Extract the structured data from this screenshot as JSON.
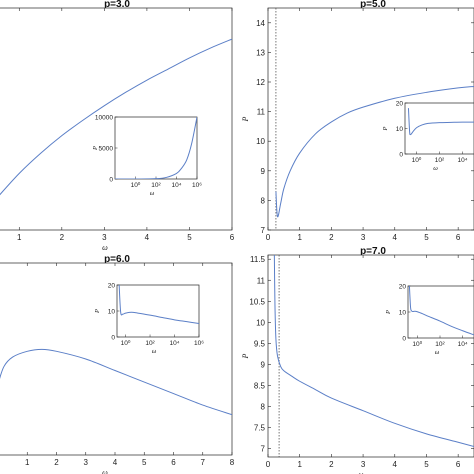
{
  "chart_data": [
    {
      "type": "line",
      "title": "p=3.0",
      "xlabel": "ω",
      "ylabel": "",
      "xlim": [
        0.5,
        6
      ],
      "ylim": [
        0,
        10
      ],
      "xticks": [
        "1",
        "2",
        "3",
        "4",
        "5",
        "6"
      ],
      "yticks": [],
      "series": [
        {
          "color": "#5b7fc7",
          "x": [
            0.5,
            1,
            1.5,
            2,
            2.5,
            3,
            3.5,
            4,
            4.5,
            5,
            5.5,
            6
          ],
          "y": [
            1.5,
            2.55,
            3.45,
            4.25,
            4.95,
            5.6,
            6.2,
            6.75,
            7.25,
            7.75,
            8.2,
            8.6
          ]
        }
      ],
      "inset": {
        "ylabel": "P",
        "xlabel": "ω",
        "xscale": "log",
        "xlim": [
          0.01,
          1000000
        ],
        "ylim": [
          0,
          10000
        ],
        "xticks": [
          "10⁰",
          "10²",
          "10⁴",
          "10⁶"
        ],
        "yticks": [
          "0",
          "5000",
          "10000"
        ],
        "series": [
          {
            "color": "#5b7fc7",
            "x": [
              0.01,
              1,
              100,
              1000,
              10000,
              30000,
              100000,
              300000,
              1000000
            ],
            "y": [
              0,
              0,
              60,
              250,
              900,
              1700,
              3100,
              5700,
              10000
            ]
          }
        ]
      }
    },
    {
      "type": "line",
      "title": "p=5.0",
      "xlabel": "",
      "ylabel": "P",
      "xlim": [
        0,
        6.5
      ],
      "ylim": [
        7,
        14.5
      ],
      "xticks": [
        "0",
        "1",
        "2",
        "3",
        "4",
        "5",
        "6"
      ],
      "yticks": [
        "7",
        "8",
        "9",
        "10",
        "11",
        "12",
        "13",
        "14"
      ],
      "vline": 0.25,
      "series": [
        {
          "color": "#5b7fc7",
          "x": [
            0.25,
            0.3,
            0.4,
            0.5,
            0.7,
            1,
            1.5,
            2,
            2.5,
            3,
            4,
            5,
            6,
            6.5
          ],
          "y": [
            8.3,
            7.45,
            7.9,
            8.4,
            9.0,
            9.6,
            10.25,
            10.65,
            10.95,
            11.15,
            11.45,
            11.65,
            11.8,
            11.85
          ]
        }
      ],
      "inset": {
        "ylabel": "P",
        "xlabel": "ω",
        "xscale": "log",
        "xlim": [
          0.1,
          100000
        ],
        "ylim": [
          0,
          20
        ],
        "xticks": [
          "10⁰",
          "10²",
          "10⁴"
        ],
        "yticks": [
          "0",
          "10",
          "20"
        ],
        "series": [
          {
            "color": "#5b7fc7",
            "x": [
              0.2,
              0.25,
              0.3,
              0.5,
              1,
              3,
              10,
              100,
              1000,
              10000,
              100000
            ],
            "y": [
              18,
              9,
              7.6,
              8.8,
              10.3,
              11.4,
              12.0,
              12.3,
              12.4,
              12.5,
              12.5
            ]
          }
        ]
      }
    },
    {
      "type": "line",
      "title": "p=6.0",
      "xlabel": "ω",
      "ylabel": "",
      "xlim": [
        0,
        8
      ],
      "ylim": [
        0,
        10
      ],
      "xticks": [
        "1",
        "2",
        "3",
        "4",
        "5",
        "6",
        "7",
        "8"
      ],
      "yticks": [],
      "series": [
        {
          "color": "#5b7fc7",
          "x": [
            0,
            0.2,
            0.5,
            1,
            1.5,
            2,
            3,
            4,
            5,
            6,
            7,
            8
          ],
          "y": [
            3.7,
            4.6,
            5.1,
            5.4,
            5.5,
            5.4,
            5.0,
            4.4,
            3.8,
            3.2,
            2.6,
            2.1
          ]
        }
      ],
      "inset": {
        "ylabel": "P",
        "xlabel": "ω",
        "xscale": "log",
        "xlim": [
          0.2,
          1000000
        ],
        "ylim": [
          0,
          20
        ],
        "xticks": [
          "10⁰",
          "10²",
          "10⁴",
          "10⁶"
        ],
        "yticks": [
          "0",
          "10",
          "20"
        ],
        "series": [
          {
            "color": "#5b7fc7",
            "x": [
              0.3,
              0.4,
              0.6,
              1,
              3,
              10,
              100,
              1000,
              10000,
              100000,
              1000000
            ],
            "y": [
              20,
              9.5,
              8.8,
              9.2,
              9.5,
              9.2,
              8.4,
              7.5,
              6.6,
              5.9,
              5.2
            ]
          }
        ]
      }
    },
    {
      "type": "line",
      "title": "p=7.0",
      "xlabel": "ω",
      "ylabel": "P",
      "xlim": [
        0,
        6.5
      ],
      "ylim": [
        6.8,
        11.6
      ],
      "xticks": [
        "0",
        "1",
        "2",
        "3",
        "4",
        "5",
        "6"
      ],
      "yticks": [
        "7",
        "7.5",
        "8",
        "8.5",
        "9",
        "9.5",
        "10",
        "10.5",
        "11",
        "11.5"
      ],
      "vline": 0.35,
      "series": [
        {
          "color": "#5b7fc7",
          "x": [
            0.2,
            0.22,
            0.25,
            0.3,
            0.4,
            0.5,
            0.75,
            1,
            1.5,
            2,
            3,
            4,
            5,
            6,
            6.5
          ],
          "y": [
            11.6,
            10.4,
            9.6,
            9.2,
            8.95,
            8.85,
            8.72,
            8.6,
            8.4,
            8.2,
            7.9,
            7.6,
            7.35,
            7.15,
            7.05
          ]
        }
      ],
      "inset": {
        "ylabel": "P",
        "xlabel": "ω",
        "xscale": "log",
        "xlim": [
          0.15,
          100000
        ],
        "ylim": [
          0,
          20
        ],
        "xticks": [
          "10⁰",
          "10²",
          "10⁴"
        ],
        "yticks": [
          "0",
          "10",
          "20"
        ],
        "series": [
          {
            "color": "#5b7fc7",
            "x": [
              0.2,
              0.25,
              0.3,
              0.4,
              0.6,
              1,
              3,
              10,
              100,
              1000,
              10000,
              100000
            ],
            "y": [
              20,
              12,
              10.5,
              10.2,
              10.3,
              10.1,
              9.3,
              8.3,
              6.5,
              4.5,
              2.8,
              1.2
            ]
          }
        ]
      }
    }
  ]
}
